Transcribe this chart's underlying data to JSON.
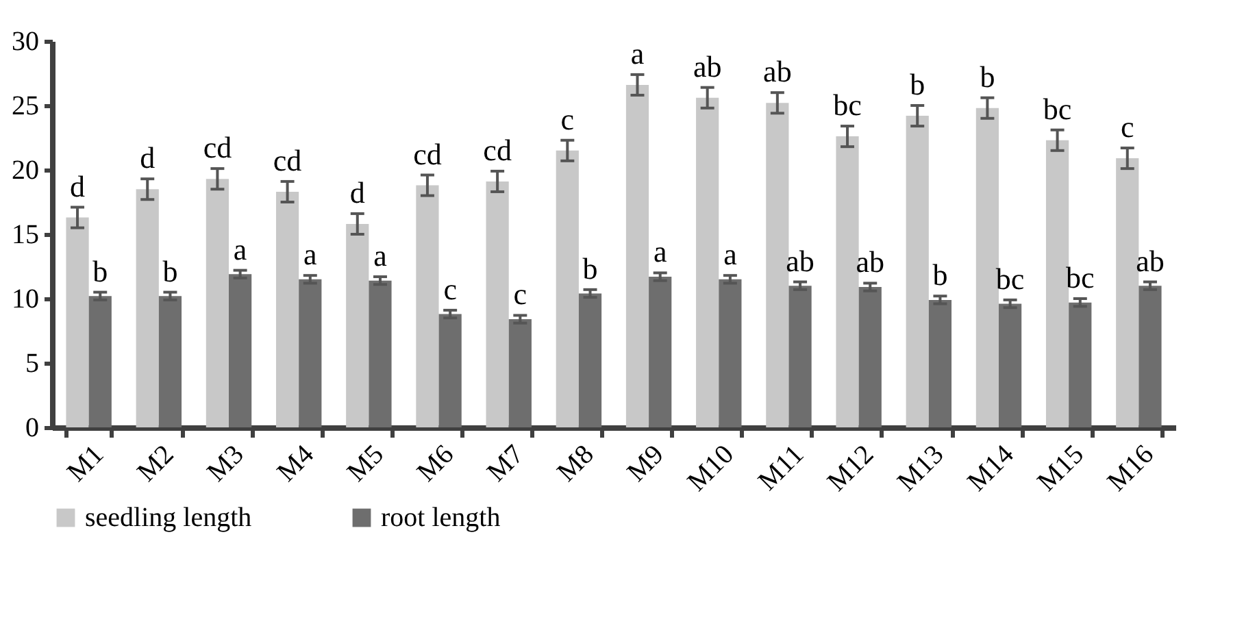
{
  "chart_data": {
    "type": "bar",
    "categories": [
      "M1",
      "M2",
      "M3",
      "M4",
      "M5",
      "M6",
      "M7",
      "M8",
      "M9",
      "M10",
      "M11",
      "M12",
      "M13",
      "M14",
      "M15",
      "M16"
    ],
    "series": [
      {
        "name": "seedling length",
        "color": "#c8c8c8",
        "values": [
          16.3,
          18.5,
          19.3,
          18.3,
          15.8,
          18.8,
          19.1,
          21.5,
          26.6,
          25.6,
          25.2,
          22.6,
          24.2,
          24.8,
          22.3,
          20.9
        ],
        "errors": [
          0.8,
          0.8,
          0.8,
          0.8,
          0.8,
          0.8,
          0.8,
          0.8,
          0.8,
          0.8,
          0.8,
          0.8,
          0.8,
          0.8,
          0.8,
          0.8
        ],
        "value_labels": [
          "d",
          "d",
          "cd",
          "cd",
          "d",
          "cd",
          "cd",
          "c",
          "a",
          "ab",
          "ab",
          "bc",
          "b",
          "b",
          "bc",
          "c"
        ]
      },
      {
        "name": "root length",
        "color": "#6e6e6e",
        "values": [
          10.2,
          10.2,
          11.9,
          11.5,
          11.4,
          8.8,
          8.4,
          10.4,
          11.7,
          11.5,
          11.0,
          10.9,
          9.9,
          9.6,
          9.7,
          11.0
        ],
        "errors": [
          0.3,
          0.3,
          0.3,
          0.3,
          0.3,
          0.3,
          0.3,
          0.3,
          0.3,
          0.3,
          0.3,
          0.3,
          0.3,
          0.3,
          0.3,
          0.3
        ],
        "value_labels": [
          "b",
          "b",
          "a",
          "a",
          "a",
          "c",
          "c",
          "b",
          "a",
          "a",
          "ab",
          "ab",
          "b",
          "bc",
          "bc",
          "ab"
        ]
      }
    ],
    "ylim": [
      0,
      30
    ],
    "yticks": [
      0,
      5,
      10,
      15,
      20,
      25,
      30
    ],
    "grid": false,
    "legend": "bottom"
  }
}
